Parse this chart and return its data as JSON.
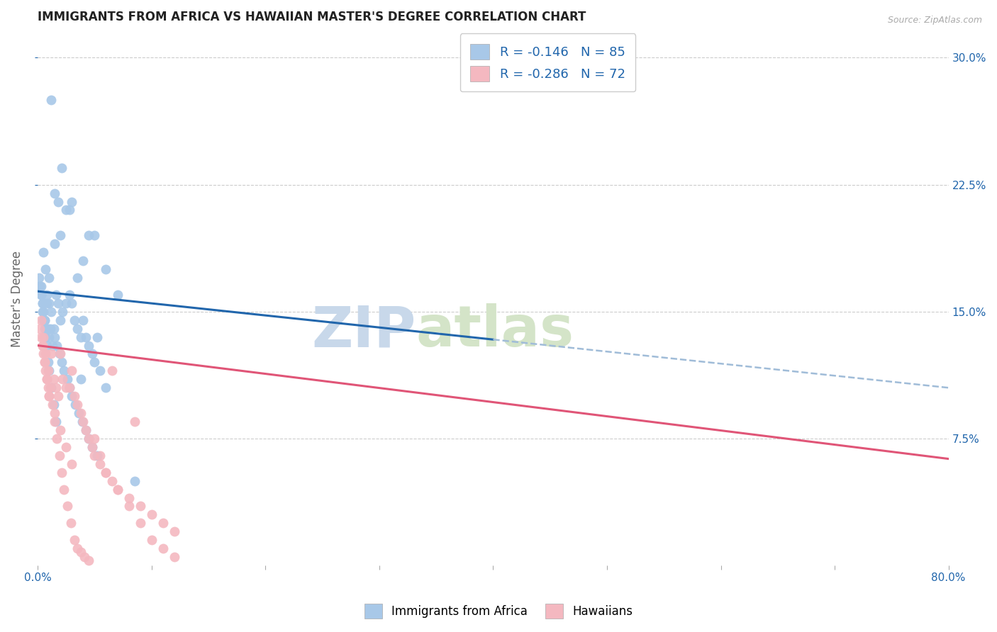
{
  "title": "IMMIGRANTS FROM AFRICA VS HAWAIIAN MASTER'S DEGREE CORRELATION CHART",
  "source": "Source: ZipAtlas.com",
  "ylabel": "Master's Degree",
  "ytick_vals": [
    7.5,
    15.0,
    22.5,
    30.0
  ],
  "ytick_labels": [
    "7.5%",
    "15.0%",
    "22.5%",
    "30.0%"
  ],
  "blue_color": "#a8c8e8",
  "pink_color": "#f4b8c0",
  "blue_line_color": "#2166ac",
  "pink_line_color": "#e05577",
  "dashed_line_color": "#a0bcd8",
  "watermark_zip": "ZIP",
  "watermark_atlas": "atlas",
  "xmin": 0.0,
  "xmax": 80.0,
  "ymin": 0.0,
  "ymax": 31.5,
  "blue_line_x1": 0.0,
  "blue_line_y1": 16.2,
  "blue_line_x2": 80.0,
  "blue_line_y2": 10.5,
  "blue_solid_end_x": 40.0,
  "pink_line_x1": 0.0,
  "pink_line_y1": 13.0,
  "pink_line_x2": 80.0,
  "pink_line_y2": 6.3,
  "blue_scatter_x": [
    1.2,
    2.1,
    2.8,
    4.5,
    1.5,
    1.8,
    0.5,
    0.7,
    1.0,
    1.5,
    2.0,
    2.5,
    3.0,
    3.5,
    4.0,
    5.0,
    6.0,
    7.0,
    0.3,
    0.4,
    0.6,
    0.8,
    1.0,
    1.2,
    1.4,
    1.6,
    1.8,
    2.0,
    2.2,
    2.5,
    2.8,
    3.0,
    3.2,
    3.5,
    3.8,
    4.0,
    4.2,
    4.5,
    4.8,
    5.0,
    5.5,
    6.0,
    0.2,
    0.3,
    0.4,
    0.5,
    0.6,
    0.7,
    0.8,
    0.9,
    1.0,
    1.1,
    1.3,
    1.5,
    1.7,
    1.9,
    2.1,
    2.3,
    2.6,
    2.8,
    3.0,
    3.3,
    3.6,
    3.9,
    4.2,
    4.5,
    4.8,
    5.2,
    0.1,
    0.2,
    0.3,
    0.4,
    0.5,
    0.6,
    0.7,
    0.8,
    0.9,
    1.0,
    1.2,
    1.4,
    1.6,
    3.8,
    5.2,
    8.5
  ],
  "blue_scatter_y": [
    27.5,
    23.5,
    21.0,
    19.5,
    22.0,
    21.5,
    18.5,
    17.5,
    17.0,
    19.0,
    19.5,
    21.0,
    21.5,
    17.0,
    18.0,
    19.5,
    17.5,
    16.0,
    16.5,
    15.5,
    14.5,
    16.0,
    15.5,
    15.0,
    14.0,
    16.0,
    15.5,
    14.5,
    15.0,
    15.5,
    16.0,
    15.5,
    14.5,
    14.0,
    13.5,
    14.5,
    13.5,
    13.0,
    12.5,
    12.0,
    11.5,
    10.5,
    16.5,
    16.0,
    15.5,
    15.0,
    14.5,
    14.0,
    15.5,
    14.0,
    13.5,
    14.0,
    13.0,
    13.5,
    13.0,
    12.5,
    12.0,
    11.5,
    11.0,
    10.5,
    10.0,
    9.5,
    9.0,
    8.5,
    8.0,
    7.5,
    7.0,
    6.5,
    17.0,
    16.5,
    16.0,
    15.0,
    14.5,
    14.0,
    13.5,
    13.0,
    12.0,
    11.5,
    10.5,
    9.5,
    8.5,
    11.0,
    13.5,
    5.0
  ],
  "pink_scatter_x": [
    0.2,
    0.3,
    0.4,
    0.5,
    0.6,
    0.7,
    0.8,
    0.9,
    1.0,
    1.2,
    1.4,
    1.6,
    1.8,
    2.0,
    2.2,
    2.5,
    2.8,
    3.0,
    3.2,
    3.5,
    3.8,
    4.0,
    4.2,
    4.5,
    4.8,
    5.0,
    5.5,
    6.0,
    6.5,
    7.0,
    8.0,
    9.0,
    10.0,
    11.0,
    12.0,
    0.3,
    0.5,
    0.7,
    0.9,
    1.1,
    1.3,
    1.5,
    1.7,
    1.9,
    2.1,
    2.3,
    2.6,
    2.9,
    3.2,
    3.5,
    3.8,
    4.1,
    4.5,
    5.0,
    5.5,
    6.0,
    7.0,
    8.0,
    9.0,
    10.0,
    11.0,
    12.0,
    0.4,
    0.6,
    0.8,
    1.0,
    1.5,
    2.0,
    2.5,
    3.0,
    6.5,
    8.5
  ],
  "pink_scatter_y": [
    14.0,
    13.5,
    13.0,
    12.5,
    12.0,
    11.5,
    11.0,
    10.5,
    10.0,
    12.5,
    11.0,
    10.5,
    10.0,
    12.5,
    11.0,
    10.5,
    10.5,
    11.5,
    10.0,
    9.5,
    9.0,
    8.5,
    8.0,
    7.5,
    7.0,
    6.5,
    6.0,
    5.5,
    5.0,
    4.5,
    4.0,
    3.5,
    3.0,
    2.5,
    2.0,
    14.5,
    13.5,
    12.5,
    11.5,
    10.5,
    9.5,
    8.5,
    7.5,
    6.5,
    5.5,
    4.5,
    3.5,
    2.5,
    1.5,
    1.0,
    0.8,
    0.5,
    0.3,
    7.5,
    6.5,
    5.5,
    4.5,
    3.5,
    2.5,
    1.5,
    1.0,
    0.5,
    13.0,
    12.0,
    11.0,
    10.0,
    9.0,
    8.0,
    7.0,
    6.0,
    11.5,
    8.5
  ]
}
